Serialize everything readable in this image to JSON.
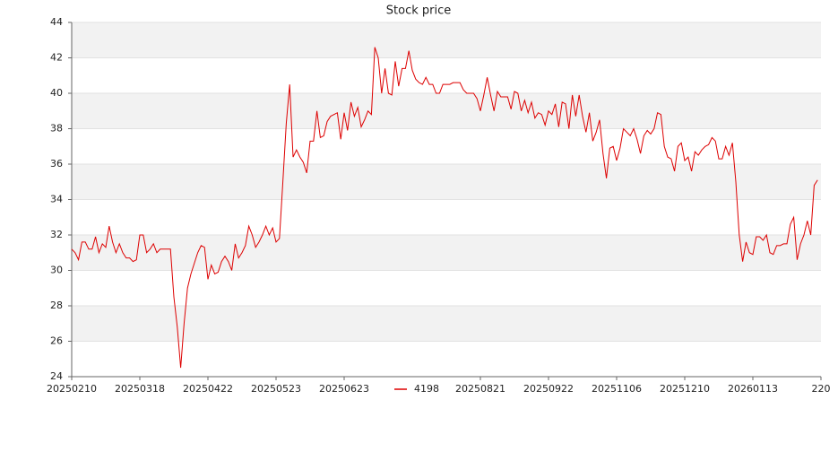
{
  "chart_data": {
    "type": "line",
    "title": "Stock price",
    "categories": [
      "20250210",
      null,
      null,
      null,
      null,
      null,
      null,
      null,
      null,
      null,
      null,
      null,
      null,
      null,
      null,
      null,
      null,
      null,
      null,
      null,
      "20250318",
      null,
      null,
      null,
      null,
      null,
      null,
      null,
      null,
      null,
      null,
      null,
      null,
      null,
      null,
      null,
      null,
      null,
      null,
      null,
      "20250422",
      null,
      null,
      null,
      null,
      null,
      null,
      null,
      null,
      null,
      null,
      null,
      null,
      null,
      null,
      null,
      null,
      null,
      null,
      null,
      "20250523",
      null,
      null,
      null,
      null,
      null,
      null,
      null,
      null,
      null,
      null,
      null,
      null,
      null,
      null,
      null,
      null,
      null,
      null,
      null,
      "20250623",
      null,
      null,
      null,
      null,
      null,
      null,
      null,
      null,
      null,
      null,
      null,
      null,
      null,
      null,
      null,
      null,
      null,
      null,
      null,
      null,
      null,
      null,
      null,
      null,
      null,
      null,
      null,
      null,
      null,
      null,
      null,
      null,
      null,
      null,
      null,
      null,
      null,
      null,
      null,
      "20250821",
      null,
      null,
      null,
      null,
      null,
      null,
      null,
      null,
      null,
      null,
      null,
      null,
      null,
      null,
      null,
      null,
      null,
      null,
      null,
      "20250922",
      null,
      null,
      null,
      null,
      null,
      null,
      null,
      null,
      null,
      null,
      null,
      null,
      null,
      null,
      null,
      null,
      null,
      null,
      null,
      "20251106",
      null,
      null,
      null,
      null,
      null,
      null,
      null,
      null,
      null,
      null,
      null,
      null,
      null,
      null,
      null,
      null,
      null,
      null,
      null,
      "20251210",
      null,
      null,
      null,
      null,
      null,
      null,
      null,
      null,
      null,
      null,
      null,
      null,
      null,
      null,
      null,
      null,
      null,
      null,
      null,
      "20260113",
      null,
      null,
      null,
      null,
      null,
      null,
      null,
      null,
      null,
      null,
      null,
      null,
      null,
      null,
      null,
      null,
      null,
      null,
      null,
      "220"
    ],
    "series": [
      {
        "name": "4198",
        "color": "#dd0000",
        "values": [
          31.2,
          31.0,
          30.6,
          31.6,
          31.6,
          31.2,
          31.2,
          31.9,
          31.0,
          31.5,
          31.3,
          32.5,
          31.6,
          31.0,
          31.5,
          31.0,
          30.7,
          30.7,
          30.5,
          30.6,
          32.0,
          32.0,
          31.0,
          31.2,
          31.5,
          31.0,
          31.2,
          31.2,
          31.2,
          31.2,
          28.5,
          26.8,
          24.5,
          27.0,
          29.0,
          29.8,
          30.4,
          31.0,
          31.4,
          31.3,
          29.5,
          30.3,
          29.8,
          29.9,
          30.5,
          30.8,
          30.5,
          30.0,
          31.5,
          30.7,
          31.0,
          31.4,
          32.5,
          32.0,
          31.3,
          31.6,
          32.0,
          32.5,
          32.0,
          32.4,
          31.6,
          31.8,
          35.0,
          38.3,
          40.5,
          36.4,
          36.8,
          36.4,
          36.1,
          35.5,
          37.3,
          37.3,
          39.0,
          37.5,
          37.6,
          38.4,
          38.7,
          38.8,
          38.9,
          37.4,
          38.9,
          37.9,
          39.5,
          38.7,
          39.2,
          38.1,
          38.5,
          39.0,
          38.8,
          42.6,
          42.0,
          40.0,
          41.4,
          40.0,
          39.9,
          41.8,
          40.4,
          41.4,
          41.4,
          42.4,
          41.3,
          40.8,
          40.6,
          40.5,
          40.9,
          40.5,
          40.5,
          40.0,
          40.0,
          40.5,
          40.5,
          40.5,
          40.6,
          40.6,
          40.6,
          40.2,
          40.0,
          40.0,
          40.0,
          39.7,
          39.0,
          39.9,
          40.9,
          39.9,
          39.0,
          40.1,
          39.8,
          39.8,
          39.8,
          39.1,
          40.1,
          40.0,
          39.0,
          39.6,
          38.9,
          39.5,
          38.6,
          38.9,
          38.8,
          38.2,
          39.0,
          38.8,
          39.4,
          38.1,
          39.5,
          39.4,
          38.0,
          39.9,
          38.7,
          39.9,
          38.7,
          37.8,
          38.9,
          37.3,
          37.8,
          38.5,
          36.6,
          35.2,
          36.9,
          37.0,
          36.2,
          36.9,
          38.0,
          37.8,
          37.6,
          38.0,
          37.4,
          36.6,
          37.6,
          37.9,
          37.7,
          38.0,
          38.9,
          38.8,
          37.0,
          36.4,
          36.3,
          35.6,
          37.0,
          37.2,
          36.2,
          36.4,
          35.6,
          36.7,
          36.5,
          36.8,
          37.0,
          37.1,
          37.5,
          37.3,
          36.3,
          36.3,
          37.0,
          36.5,
          37.2,
          35.0,
          32.0,
          30.5,
          31.6,
          31.0,
          30.9,
          31.9,
          31.9,
          31.7,
          32.0,
          31.0,
          30.9,
          31.4,
          31.4,
          31.5,
          31.5,
          32.6,
          33.0,
          30.6,
          31.5,
          32.0,
          32.8,
          32.0,
          34.8,
          35.1,
          null
        ]
      }
    ],
    "ylim": [
      24,
      44
    ],
    "yticks": [
      24,
      26,
      28,
      30,
      32,
      34,
      36,
      38,
      40,
      42,
      44
    ],
    "grid": true,
    "band_color": "#f2f2f2",
    "legend": "bottom"
  }
}
